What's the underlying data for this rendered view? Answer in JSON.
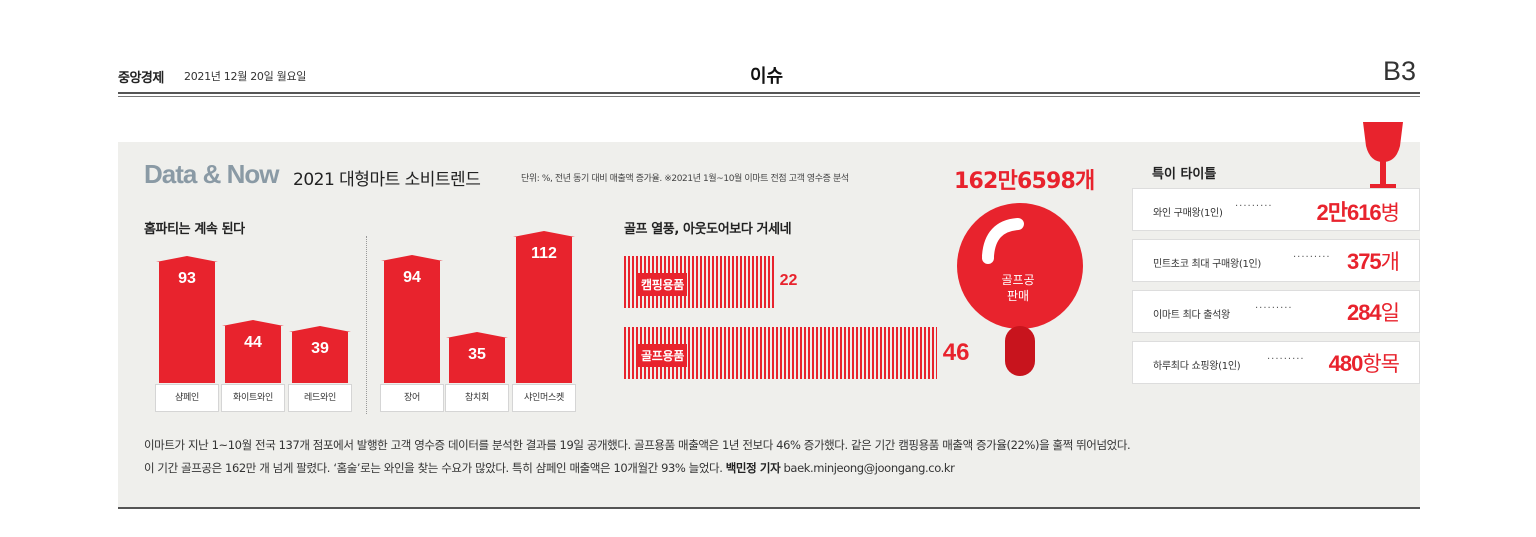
{
  "masthead": {
    "brand": "중앙경제",
    "date": "2021년 12월 20일 월요일",
    "section": "이슈",
    "page": "B3"
  },
  "infographic": {
    "brand": "Data & Now",
    "title": "2021 대형마트 소비트렌드",
    "note": "단위: %, 전년 동기 대비 매출액 증가율. ※2021년 1월~10월 이마트 전점 고객 영수증 분석",
    "home_party": {
      "title": "홈파티는 계속 된다",
      "colors": {
        "bar": "#e8232d"
      }
    },
    "golf": {
      "title": "골프 열풍, 아웃도어보다 거세네",
      "total": "162만6598개",
      "ball_label": [
        "골프공",
        "판매"
      ]
    },
    "records": {
      "title": "특이 타이틀",
      "items": [
        {
          "label": "와인 구매왕(1인)",
          "num": "2만616",
          "unit": "병"
        },
        {
          "label": "민트초코 최대 구매왕(1인)",
          "num": "375",
          "unit": "개"
        },
        {
          "label": "이마트 최다 출석왕",
          "num": "284",
          "unit": "일"
        },
        {
          "label": "하루최다 쇼핑왕(1인)",
          "num": "480",
          "unit": "항목"
        }
      ]
    }
  },
  "chart_data": [
    {
      "type": "bar",
      "title": "홈파티는 계속 된다",
      "categories": [
        "샴페인",
        "화이트와인",
        "레드와인",
        "장어",
        "참치회",
        "샤인머스켓"
      ],
      "values": [
        93,
        44,
        39,
        94,
        35,
        112
      ]
    },
    {
      "type": "bar",
      "orientation": "horizontal",
      "title": "골프 열풍, 아웃도어보다 거세네",
      "categories": [
        "캠핑용품",
        "골프용품"
      ],
      "values": [
        22,
        46
      ]
    }
  ],
  "body": {
    "line1": "이마트가 지난 1~10월 전국 137개 점포에서 발행한 고객 영수증 데이터를 분석한 결과를 19일 공개했다. 골프용품 매출액은 1년 전보다 46% 증가했다. 같은 기간 캠핑용품 매출액 증가율(22%)을 훌쩍 뛰어넘었다.",
    "line2": "이 기간 골프공은 162만 개 넘게 팔렸다. ‘홈술’로는 와인을 찾는 수요가 많았다. 특히 샴페인 매출액은 10개월간 93% 늘었다.",
    "byline": "백민정 기자",
    "email": "baek.minjeong@joongang.co.kr"
  }
}
